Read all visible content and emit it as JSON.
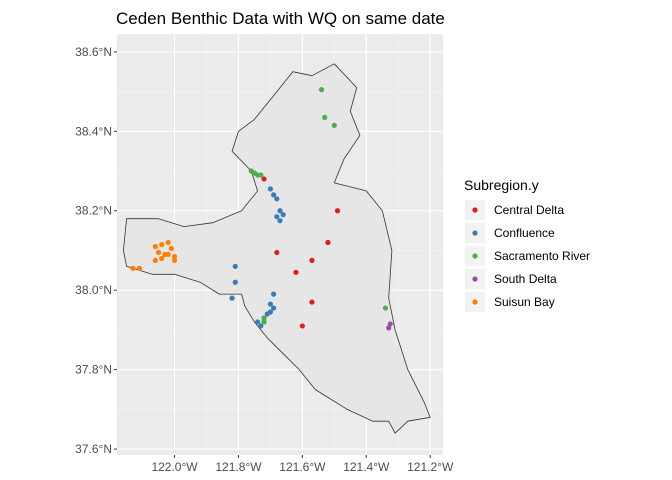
{
  "chart_data": {
    "type": "scatter",
    "title": "Ceden Benthic Data with WQ on same date",
    "xlabel": "",
    "ylabel": "",
    "xlim": [
      -122.18,
      -121.16
    ],
    "ylim": [
      37.585,
      38.645
    ],
    "x_ticks": [
      -122.0,
      -121.8,
      -121.6,
      -121.4,
      -121.2
    ],
    "x_tick_labels": [
      "122.0°W",
      "121.8°W",
      "121.6°W",
      "121.4°W",
      "121.2°W"
    ],
    "y_ticks": [
      37.6,
      37.8,
      38.0,
      38.2,
      38.4,
      38.6
    ],
    "y_tick_labels": [
      "37.6°N",
      "37.8°N",
      "38.0°N",
      "38.2°N",
      "38.4°N",
      "38.6°N"
    ],
    "grid": true,
    "legend": {
      "title": "Subregion.y",
      "position": "right"
    },
    "map_outline": [
      [
        -121.57,
        38.54
      ],
      [
        -121.5,
        38.57
      ],
      [
        -121.43,
        38.51
      ],
      [
        -121.45,
        38.45
      ],
      [
        -121.42,
        38.39
      ],
      [
        -121.47,
        38.33
      ],
      [
        -121.5,
        38.27
      ],
      [
        -121.4,
        38.25
      ],
      [
        -121.35,
        38.2
      ],
      [
        -121.32,
        38.1
      ],
      [
        -121.33,
        37.98
      ],
      [
        -121.31,
        37.9
      ],
      [
        -121.27,
        37.8
      ],
      [
        -121.22,
        37.72
      ],
      [
        -121.2,
        37.68
      ],
      [
        -121.27,
        37.67
      ],
      [
        -121.31,
        37.64
      ],
      [
        -121.33,
        37.67
      ],
      [
        -121.38,
        37.67
      ],
      [
        -121.46,
        37.7
      ],
      [
        -121.56,
        37.75
      ],
      [
        -121.61,
        37.8
      ],
      [
        -121.66,
        37.84
      ],
      [
        -121.71,
        37.88
      ],
      [
        -121.75,
        37.92
      ],
      [
        -121.78,
        37.96
      ],
      [
        -121.79,
        37.99
      ],
      [
        -121.86,
        37.99
      ],
      [
        -121.92,
        38.02
      ],
      [
        -122.0,
        38.04
      ],
      [
        -122.07,
        38.04
      ],
      [
        -122.15,
        38.06
      ],
      [
        -122.16,
        38.1
      ],
      [
        -122.15,
        38.18
      ],
      [
        -122.05,
        38.18
      ],
      [
        -121.97,
        38.16
      ],
      [
        -121.88,
        38.17
      ],
      [
        -121.79,
        38.2
      ],
      [
        -121.74,
        38.25
      ],
      [
        -121.76,
        38.3
      ],
      [
        -121.82,
        38.35
      ],
      [
        -121.8,
        38.4
      ],
      [
        -121.75,
        38.43
      ],
      [
        -121.69,
        38.49
      ],
      [
        -121.63,
        38.55
      ]
    ],
    "series": [
      {
        "name": "Central Delta",
        "color": "#E41A1C",
        "x": [
          -121.72,
          -121.49,
          -121.68,
          -121.52,
          -121.62,
          -121.57,
          -121.57,
          -121.6
        ],
        "y": [
          38.28,
          38.2,
          38.095,
          38.12,
          38.045,
          38.075,
          37.97,
          37.91
        ]
      },
      {
        "name": "Confluence",
        "color": "#377EB8",
        "x": [
          -121.7,
          -121.69,
          -121.68,
          -121.67,
          -121.66,
          -121.67,
          -121.68,
          -121.81,
          -121.81,
          -121.82,
          -121.69,
          -121.7,
          -121.69,
          -121.7,
          -121.71,
          -121.72,
          -121.72,
          -121.74,
          -121.73
        ],
        "y": [
          38.255,
          38.24,
          38.23,
          38.2,
          38.19,
          38.175,
          38.185,
          38.06,
          38.02,
          37.98,
          37.99,
          37.965,
          37.955,
          37.945,
          37.94,
          37.93,
          37.92,
          37.92,
          37.91
        ]
      },
      {
        "name": "Sacramento River",
        "color": "#4DAF4A",
        "x": [
          -121.54,
          -121.53,
          -121.5,
          -121.76,
          -121.75,
          -121.74,
          -121.73,
          -121.72,
          -121.72,
          -121.34
        ],
        "y": [
          38.505,
          38.435,
          38.415,
          38.3,
          38.295,
          38.29,
          38.29,
          37.93,
          37.92,
          37.955
        ]
      },
      {
        "name": "South Delta",
        "color": "#984EA3",
        "x": [
          -121.33,
          -121.325
        ],
        "y": [
          37.905,
          37.915
        ]
      },
      {
        "name": "Suisun Bay",
        "color": "#FF7F00",
        "x": [
          -122.06,
          -122.04,
          -122.02,
          -122.01,
          -122.05,
          -122.03,
          -122.0,
          -122.06,
          -122.04,
          -122.02,
          -122.0,
          -122.13,
          -122.11
        ],
        "y": [
          38.11,
          38.115,
          38.12,
          38.105,
          38.095,
          38.09,
          38.085,
          38.075,
          38.08,
          38.09,
          38.075,
          38.055,
          38.055
        ]
      }
    ]
  }
}
